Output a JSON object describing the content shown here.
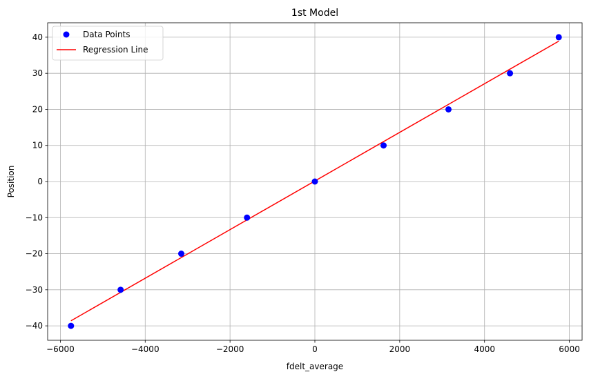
{
  "chart_data": {
    "type": "scatter",
    "title": "1st Model",
    "xlabel": "fdelt_average",
    "ylabel": "Position",
    "xlim": [
      -6300,
      6300
    ],
    "ylim": [
      -44,
      44
    ],
    "xticks": [
      -6000,
      -4000,
      -2000,
      0,
      2000,
      4000,
      6000
    ],
    "yticks": [
      -40,
      -30,
      -20,
      -10,
      0,
      10,
      20,
      30,
      40
    ],
    "xtick_labels": [
      "−6000",
      "−4000",
      "−2000",
      "0",
      "2000",
      "4000",
      "6000"
    ],
    "ytick_labels": [
      "−40",
      "−30",
      "−20",
      "−10",
      "0",
      "10",
      "20",
      "30",
      "40"
    ],
    "grid": true,
    "legend_position": "top-left",
    "series": [
      {
        "name": "Data Points",
        "kind": "scatter",
        "color": "#0000ff",
        "points": [
          {
            "x": -5750,
            "y": -40
          },
          {
            "x": -4580,
            "y": -30
          },
          {
            "x": -3150,
            "y": -20
          },
          {
            "x": -1600,
            "y": -10
          },
          {
            "x": 0,
            "y": 0
          },
          {
            "x": 1620,
            "y": 10
          },
          {
            "x": 3150,
            "y": 20
          },
          {
            "x": 4600,
            "y": 30
          },
          {
            "x": 5750,
            "y": 40
          }
        ]
      },
      {
        "name": "Regression Line",
        "kind": "line",
        "color": "#ff0000",
        "points": [
          {
            "x": -5750,
            "y": -38.6
          },
          {
            "x": 5750,
            "y": 38.9
          }
        ]
      }
    ]
  }
}
